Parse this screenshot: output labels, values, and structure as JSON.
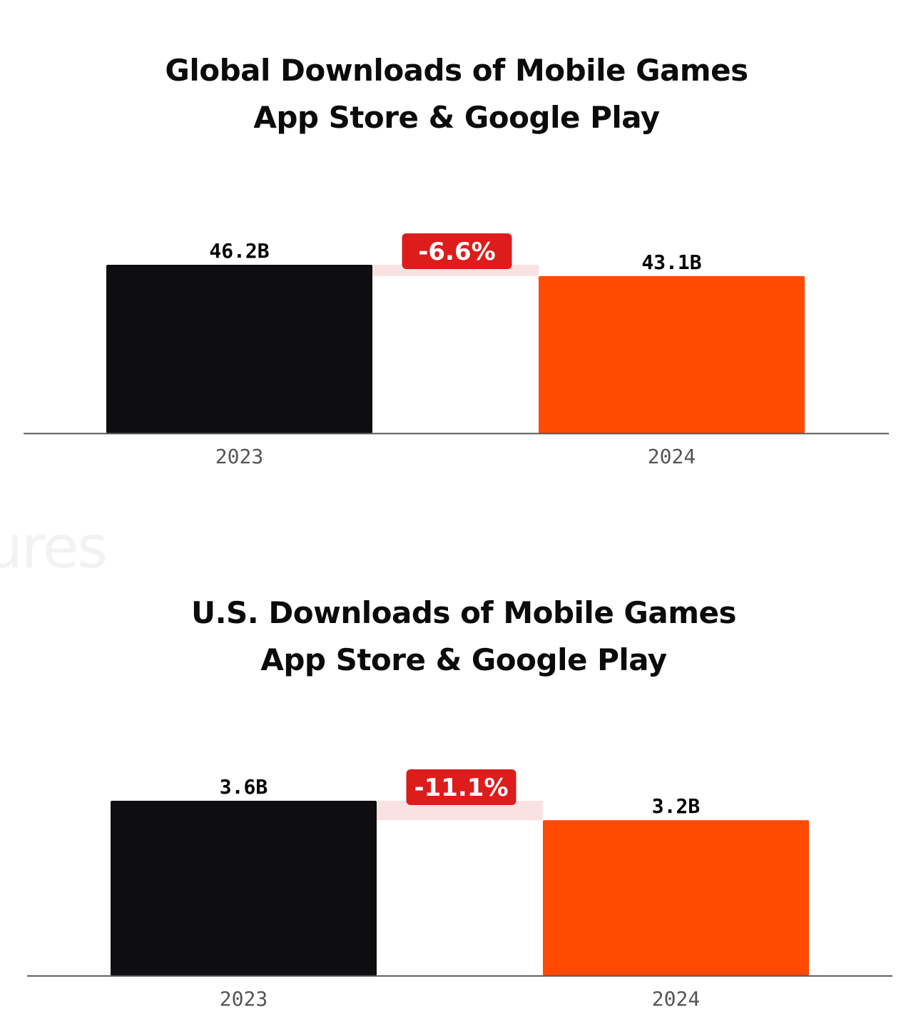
{
  "watermark": "ures",
  "colors": {
    "bar_2023": "#0e0e10",
    "bar_2024": "#ff4a00",
    "change_badge": "#dd1c1c",
    "change_band": "#fbe0e0",
    "axis": "#555555"
  },
  "chart_data": [
    {
      "type": "bar",
      "title": "Global Downloads of Mobile Games",
      "subtitle": "App Store & Google Play",
      "categories": [
        "2023",
        "2024"
      ],
      "values": [
        46.2,
        43.1
      ],
      "value_labels": [
        "46.2B",
        "43.1B"
      ],
      "change_label": "-6.6%",
      "ylim": [
        0,
        46.2
      ],
      "grid": false,
      "legend": "none"
    },
    {
      "type": "bar",
      "title": "U.S. Downloads of Mobile Games",
      "subtitle": "App Store & Google Play",
      "categories": [
        "2023",
        "2024"
      ],
      "values": [
        3.6,
        3.2
      ],
      "value_labels": [
        "3.6B",
        "3.2B"
      ],
      "change_label": "-11.1%",
      "ylim": [
        0,
        3.6
      ],
      "grid": false,
      "legend": "none"
    }
  ]
}
